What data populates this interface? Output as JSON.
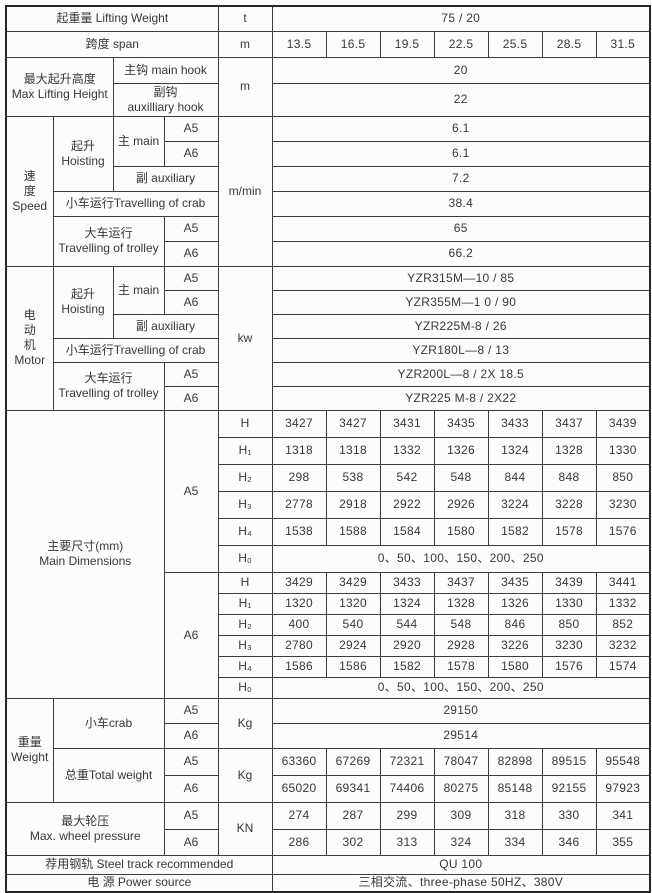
{
  "labels": {
    "a5": "A5",
    "a6": "A6"
  },
  "header": {
    "lifting_weight": {
      "label": "起重量 Lifting Weight",
      "unit": "t",
      "value": "75 / 20"
    },
    "span": {
      "label": "跨度 span",
      "unit": "m",
      "values": [
        "13.5",
        "16.5",
        "19.5",
        "22.5",
        "25.5",
        "28.5",
        "31.5"
      ]
    },
    "max_lifting_height": {
      "label": "最大起升高度\nMax Lifting Height",
      "main_hook_label": "主钩 main hook",
      "aux_hook_label": "副钩\nauxilliary hook",
      "unit": "m",
      "main_value": "20",
      "aux_value": "22"
    }
  },
  "speed": {
    "group_label": "速\n度\nSpeed",
    "hoisting_label": "起升\nHoisting",
    "main_label": "主 main",
    "aux_label": "副 auxiliary",
    "crab_label": "小车运行Travelling of crab",
    "trolley_label": "大车运行\nTravelling of trolley",
    "unit": "m/min",
    "main_a5": "6.1",
    "main_a6": "6.1",
    "aux_value": "7.2",
    "crab_value": "38.4",
    "trolley_a5": "65",
    "trolley_a6": "66.2"
  },
  "motor": {
    "group_label": "电\n动\n机\nMotor",
    "hoisting_label": "起升\nHoisting",
    "main_label": "主 main",
    "aux_label": "副 auxiliary",
    "crab_label": "小车运行Travelling of crab",
    "trolley_label": "大车运行\nTravelling of trolley",
    "unit": "kw",
    "main_a5": "YZR315M—10 / 85",
    "main_a6": "YZR355M—1 0 / 90",
    "aux_value": "YZR225M-8 / 26",
    "crab_value": "YZR180L—8 / 13",
    "trolley_a5": "YZR200L—8 / 2X 18.5",
    "trolley_a6": "YZR225 M-8 / 2X22"
  },
  "dimensions": {
    "group_label": "主要尺寸(mm)\nMain Dimensions",
    "a5_label": "A5",
    "a6_label": "A6",
    "a5_rows": [
      {
        "name": "H",
        "values": [
          "3427",
          "3427",
          "3431",
          "3435",
          "3433",
          "3437",
          "3439"
        ]
      },
      {
        "name": "H₁",
        "values": [
          "1318",
          "1318",
          "1332",
          "1326",
          "1324",
          "1328",
          "1330"
        ]
      },
      {
        "name": "H₂",
        "values": [
          "298",
          "538",
          "542",
          "548",
          "844",
          "848",
          "850"
        ]
      },
      {
        "name": "H₃",
        "values": [
          "2778",
          "2918",
          "2922",
          "2926",
          "3224",
          "3228",
          "3230"
        ]
      },
      {
        "name": "H₄",
        "values": [
          "1538",
          "1588",
          "1584",
          "1580",
          "1582",
          "1578",
          "1576"
        ]
      },
      {
        "name": "H₀",
        "merged": "0、50、100、150、200、250"
      }
    ],
    "a6_rows": [
      {
        "name": "H",
        "values": [
          "3429",
          "3429",
          "3433",
          "3437",
          "3435",
          "3439",
          "3441"
        ]
      },
      {
        "name": "H₁",
        "values": [
          "1320",
          "1320",
          "1324",
          "1328",
          "1326",
          "1330",
          "1332"
        ]
      },
      {
        "name": "H₂",
        "values": [
          "400",
          "540",
          "544",
          "548",
          "846",
          "850",
          "852"
        ]
      },
      {
        "name": "H₃",
        "values": [
          "2780",
          "2924",
          "2920",
          "2928",
          "3226",
          "3230",
          "3232"
        ]
      },
      {
        "name": "H₄",
        "values": [
          "1586",
          "1586",
          "1582",
          "1578",
          "1580",
          "1576",
          "1574"
        ]
      },
      {
        "name": "H₀",
        "merged": "0、50、100、150、200、250"
      }
    ]
  },
  "weight": {
    "group_label": "重量\nWeight",
    "crab_label": "小车crab",
    "total_label": "总重Total weight",
    "unit": "Kg",
    "crab_a5": "29150",
    "crab_a6": "29514",
    "total_a5": [
      "63360",
      "67269",
      "72321",
      "78047",
      "82898",
      "89515",
      "95548"
    ],
    "total_a6": [
      "65020",
      "69341",
      "74406",
      "80275",
      "85148",
      "92155",
      "97923"
    ]
  },
  "wheel_pressure": {
    "label": "最大轮压\nMax.  wheel pressure",
    "unit": "KN",
    "a5": [
      "274",
      "287",
      "299",
      "309",
      "318",
      "330",
      "341"
    ],
    "a6": [
      "286",
      "302",
      "313",
      "324",
      "334",
      "346",
      "355"
    ]
  },
  "footer": {
    "steel_track_label": "荐用钢轨 Steel track recommended",
    "steel_track_value": "QU 100",
    "power_label": "电 源  Power source",
    "power_value": "三相交流、three-phase 50HZ、380V"
  }
}
